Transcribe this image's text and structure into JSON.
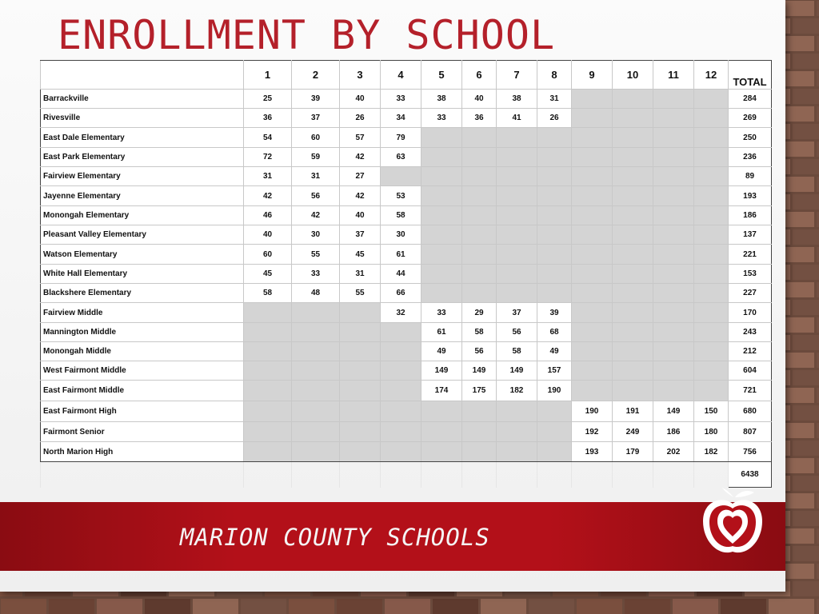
{
  "title": "ENROLLMENT BY SCHOOL",
  "footer_text": "MARION COUNTY SCHOOLS",
  "logo_icon": "apple-heart-icon",
  "colors": {
    "accent": "#b4202a",
    "banner": "#b31019",
    "na_cell": "#d4d4d4"
  },
  "table": {
    "headers": [
      "",
      "1",
      "2",
      "3",
      "4",
      "5",
      "6",
      "7",
      "8",
      "9",
      "10",
      "11",
      "12",
      "TOTAL"
    ],
    "rows": [
      {
        "name": "Barrackville",
        "cells": [
          "25",
          "39",
          "40",
          "33",
          "38",
          "40",
          "38",
          "31",
          null,
          null,
          null,
          null
        ],
        "total": "284"
      },
      {
        "name": "Rivesville",
        "cells": [
          "36",
          "37",
          "26",
          "34",
          "33",
          "36",
          "41",
          "26",
          null,
          null,
          null,
          null
        ],
        "total": "269"
      },
      {
        "name": "East Dale Elementary",
        "cells": [
          "54",
          "60",
          "57",
          "79",
          null,
          null,
          null,
          null,
          null,
          null,
          null,
          null
        ],
        "total": "250"
      },
      {
        "name": "East Park Elementary",
        "cells": [
          "72",
          "59",
          "42",
          "63",
          null,
          null,
          null,
          null,
          null,
          null,
          null,
          null
        ],
        "total": "236"
      },
      {
        "name": "Fairview Elementary",
        "cells": [
          "31",
          "31",
          "27",
          null,
          null,
          null,
          null,
          null,
          null,
          null,
          null,
          null
        ],
        "total": "89"
      },
      {
        "name": "Jayenne Elementary",
        "cells": [
          "42",
          "56",
          "42",
          "53",
          null,
          null,
          null,
          null,
          null,
          null,
          null,
          null
        ],
        "total": "193"
      },
      {
        "name": "Monongah Elementary",
        "cells": [
          "46",
          "42",
          "40",
          "58",
          null,
          null,
          null,
          null,
          null,
          null,
          null,
          null
        ],
        "total": "186"
      },
      {
        "name": "Pleasant Valley Elementary",
        "cells": [
          "40",
          "30",
          "37",
          "30",
          null,
          null,
          null,
          null,
          null,
          null,
          null,
          null
        ],
        "total": "137"
      },
      {
        "name": "Watson Elementary",
        "cells": [
          "60",
          "55",
          "45",
          "61",
          null,
          null,
          null,
          null,
          null,
          null,
          null,
          null
        ],
        "total": "221"
      },
      {
        "name": "White Hall Elementary",
        "cells": [
          "45",
          "33",
          "31",
          "44",
          null,
          null,
          null,
          null,
          null,
          null,
          null,
          null
        ],
        "total": "153"
      },
      {
        "name": "Blackshere Elementary",
        "cells": [
          "58",
          "48",
          "55",
          "66",
          null,
          null,
          null,
          null,
          null,
          null,
          null,
          null
        ],
        "total": "227"
      },
      {
        "name": "Fairview Middle",
        "cells": [
          null,
          null,
          null,
          "32",
          "33",
          "29",
          "37",
          "39",
          null,
          null,
          null,
          null
        ],
        "total": "170"
      },
      {
        "name": "Mannington Middle",
        "cells": [
          null,
          null,
          null,
          null,
          "61",
          "58",
          "56",
          "68",
          null,
          null,
          null,
          null
        ],
        "total": "243"
      },
      {
        "name": "Monongah Middle",
        "cells": [
          null,
          null,
          null,
          null,
          "49",
          "56",
          "58",
          "49",
          null,
          null,
          null,
          null
        ],
        "total": "212"
      },
      {
        "name": "West Fairmont Middle",
        "cells": [
          null,
          null,
          null,
          null,
          "149",
          "149",
          "149",
          "157",
          null,
          null,
          null,
          null
        ],
        "total": "604"
      },
      {
        "name": "East Fairmont Middle",
        "cells": [
          null,
          null,
          null,
          null,
          "174",
          "175",
          "182",
          "190",
          null,
          null,
          null,
          null
        ],
        "total": "721"
      },
      {
        "name": "East Fairmont High",
        "cells": [
          null,
          null,
          null,
          null,
          null,
          null,
          null,
          null,
          "190",
          "191",
          "149",
          "150"
        ],
        "total": "680"
      },
      {
        "name": "Fairmont Senior",
        "cells": [
          null,
          null,
          null,
          null,
          null,
          null,
          null,
          null,
          "192",
          "249",
          "186",
          "180"
        ],
        "total": "807"
      },
      {
        "name": "North Marion High",
        "cells": [
          null,
          null,
          null,
          null,
          null,
          null,
          null,
          null,
          "193",
          "179",
          "202",
          "182"
        ],
        "total": "756"
      }
    ],
    "grand_total": "6438"
  }
}
